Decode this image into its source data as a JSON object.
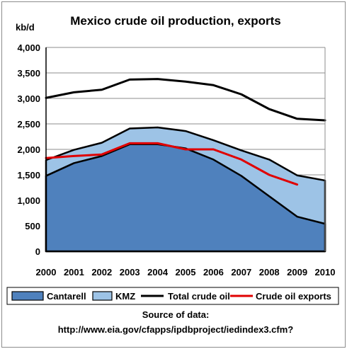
{
  "chart_data": {
    "type": "area",
    "title": "Mexico crude oil production, exports",
    "ylabel": "kb/d",
    "xlabel": "",
    "x": [
      "2000",
      "2001",
      "2002",
      "2003",
      "2004",
      "2005",
      "2006",
      "2007",
      "2008",
      "2009",
      "2010"
    ],
    "ylim": [
      0,
      4000
    ],
    "yticks": [
      "0",
      "500",
      "1,000",
      "1,500",
      "2,000",
      "2,500",
      "3,000",
      "3,500",
      "4,000"
    ],
    "ytick_values": [
      0,
      500,
      1000,
      1500,
      2000,
      2500,
      3000,
      3500,
      4000
    ],
    "grid": true,
    "legend_position": "bottom",
    "series": [
      {
        "name": "Cantarell",
        "kind": "area",
        "color": "#4f81bd",
        "values": [
          1480,
          1730,
          1870,
          2100,
          2100,
          2020,
          1800,
          1480,
          1080,
          680,
          540
        ]
      },
      {
        "name": "KMZ",
        "kind": "area",
        "color": "#9dc3e6",
        "values": [
          1790,
          1990,
          2130,
          2410,
          2430,
          2360,
          2180,
          1980,
          1800,
          1490,
          1390
        ]
      },
      {
        "name": "Total crude oil",
        "kind": "line",
        "color": "#000000",
        "values": [
          3010,
          3120,
          3170,
          3370,
          3380,
          3330,
          3260,
          3080,
          2790,
          2600,
          2570
        ]
      },
      {
        "name": "Crude oil exports",
        "kind": "line",
        "color": "#e00000",
        "values": [
          1830,
          1870,
          1900,
          2120,
          2120,
          2000,
          2000,
          1800,
          1500,
          1310,
          null
        ]
      }
    ],
    "source_line1": "Source of data:",
    "source_line2": "http://www.eia.gov/cfapps/ipdbproject/iedindex3.cfm?"
  }
}
